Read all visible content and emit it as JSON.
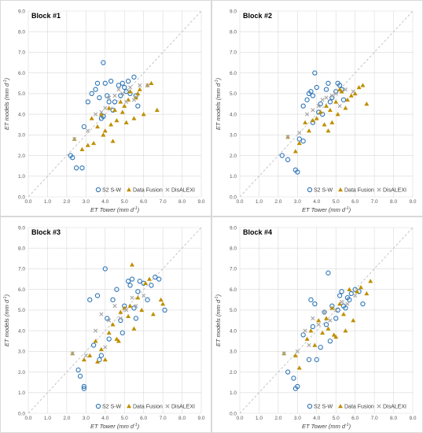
{
  "colors": {
    "s2": "#2E75B6",
    "fusion": "#BF8F00",
    "disalexi": "#A5A5A5",
    "grid": "#D9D9D9",
    "oneToOne": "#BFBFBF",
    "frame": "#D0D0D0"
  },
  "legend": {
    "s2_label": "S2 S-W",
    "fusion_label": "Data Fusion",
    "disalexi_label": "DisALEXI"
  },
  "axes": {
    "xlabel_main": "ET Tower",
    "ylabel_main": "ET models",
    "unit_main": "(mm d",
    "unit_exp": "-1",
    "unit_close": ")",
    "ticks": [
      "0.0",
      "1.0",
      "2.0",
      "3.0",
      "4.0",
      "5.0",
      "6.0",
      "7.0",
      "8.0",
      "9.0"
    ],
    "xlim": [
      0,
      9
    ],
    "ylim": [
      0,
      9
    ]
  },
  "chart_data": [
    {
      "type": "scatter",
      "title": "Block #1",
      "xlabel": "ET Tower (mm d-1)",
      "ylabel": "ET models (mm d-1)",
      "xlim": [
        0,
        9
      ],
      "ylim": [
        0,
        9
      ],
      "grid": true,
      "legend_position": "bottom-right",
      "one_to_one_line": true,
      "series": [
        {
          "name": "S2 S-W",
          "marker": "circle",
          "x": [
            2.2,
            2.3,
            2.5,
            2.8,
            2.9,
            3.1,
            3.3,
            3.5,
            3.6,
            3.7,
            3.8,
            3.9,
            3.9,
            4.0,
            4.1,
            4.2,
            4.3,
            4.4,
            4.5,
            4.7,
            4.8,
            4.9,
            5.0,
            5.1,
            5.2,
            5.3,
            5.5,
            5.6,
            5.7,
            3.9
          ],
          "y": [
            2.0,
            1.9,
            1.4,
            1.4,
            3.4,
            4.6,
            5.0,
            5.2,
            5.5,
            4.8,
            3.8,
            3.9,
            6.5,
            5.5,
            4.9,
            4.6,
            5.6,
            4.2,
            4.6,
            5.4,
            4.9,
            5.5,
            5.3,
            5.1,
            5.6,
            5.0,
            5.8,
            4.9,
            4.4,
            3.9
          ]
        },
        {
          "name": "Data Fusion",
          "marker": "triangle",
          "x": [
            2.4,
            2.8,
            3.1,
            3.3,
            3.4,
            3.6,
            3.8,
            3.9,
            4.0,
            4.2,
            4.3,
            4.5,
            4.6,
            4.8,
            4.9,
            5.0,
            5.1,
            5.2,
            5.3,
            5.5,
            5.6,
            5.8,
            6.0,
            6.2,
            6.4,
            6.7,
            4.4,
            5.7
          ],
          "y": [
            2.8,
            2.3,
            2.5,
            3.8,
            2.6,
            3.4,
            4.0,
            3.0,
            3.2,
            4.3,
            3.5,
            4.2,
            3.7,
            4.6,
            4.1,
            4.4,
            3.6,
            4.7,
            5.1,
            3.8,
            4.8,
            5.2,
            4.0,
            5.4,
            5.5,
            4.2,
            2.7,
            5.0
          ]
        },
        {
          "name": "DisALEXI",
          "marker": "x",
          "x": [
            2.4,
            3.1,
            3.5,
            3.8,
            4.0,
            4.2,
            4.5,
            4.7,
            4.9,
            5.1,
            5.3,
            5.5,
            5.8,
            6.2
          ],
          "y": [
            2.8,
            3.2,
            4.0,
            4.1,
            4.3,
            4.8,
            4.9,
            5.2,
            5.0,
            4.6,
            5.3,
            4.7,
            5.4,
            5.4
          ]
        }
      ]
    },
    {
      "type": "scatter",
      "title": "Block #2",
      "xlabel": "ET Tower (mm d-1)",
      "ylabel": "ET models (mm d-1)",
      "xlim": [
        0,
        9
      ],
      "ylim": [
        0,
        9
      ],
      "grid": true,
      "legend_position": "bottom-right",
      "one_to_one_line": true,
      "series": [
        {
          "name": "S2 S-W",
          "marker": "circle",
          "x": [
            2.2,
            2.5,
            2.9,
            3.0,
            3.1,
            3.3,
            3.5,
            3.6,
            3.7,
            3.8,
            3.9,
            4.0,
            4.1,
            4.2,
            4.3,
            4.5,
            4.6,
            4.7,
            4.8,
            5.0,
            5.1,
            5.2,
            5.3,
            5.4,
            3.3,
            3.8
          ],
          "y": [
            2.0,
            1.8,
            1.3,
            1.2,
            2.8,
            2.7,
            4.7,
            5.0,
            5.1,
            4.9,
            6.0,
            5.3,
            4.1,
            4.5,
            4.0,
            5.2,
            5.5,
            4.6,
            4.8,
            5.1,
            5.5,
            5.4,
            5.2,
            4.7,
            4.4,
            3.6
          ]
        },
        {
          "name": "Data Fusion",
          "marker": "triangle",
          "x": [
            2.5,
            2.9,
            3.1,
            3.4,
            3.6,
            3.8,
            4.0,
            4.2,
            4.4,
            4.5,
            4.7,
            4.8,
            5.0,
            5.1,
            5.3,
            5.5,
            5.6,
            5.8,
            6.0,
            6.2,
            6.4,
            6.6,
            4.6,
            5.2
          ],
          "y": [
            2.9,
            2.2,
            2.6,
            3.6,
            3.2,
            3.7,
            3.8,
            4.1,
            3.5,
            4.4,
            4.2,
            3.6,
            4.6,
            4.0,
            5.1,
            4.3,
            4.7,
            4.9,
            5.0,
            5.3,
            5.4,
            4.5,
            3.2,
            5.2
          ]
        },
        {
          "name": "DisALEXI",
          "marker": "x",
          "x": [
            2.5,
            3.1,
            3.5,
            3.8,
            4.1,
            4.3,
            4.5,
            4.8,
            5.0,
            5.2,
            5.5,
            5.9
          ],
          "y": [
            2.9,
            3.1,
            4.0,
            4.2,
            4.4,
            4.7,
            4.8,
            4.9,
            5.0,
            4.4,
            5.2,
            5.1
          ]
        }
      ]
    },
    {
      "type": "scatter",
      "title": "Block #3",
      "xlabel": "ET Tower (mm d-1)",
      "ylabel": "ET models (mm d-1)",
      "xlim": [
        0,
        9
      ],
      "ylim": [
        0,
        9
      ],
      "grid": true,
      "legend_position": "bottom-right",
      "one_to_one_line": true,
      "series": [
        {
          "name": "S2 S-W",
          "marker": "circle",
          "x": [
            2.6,
            2.7,
            2.9,
            2.9,
            3.2,
            3.4,
            3.6,
            3.7,
            3.8,
            4.0,
            4.1,
            4.2,
            4.4,
            4.6,
            4.8,
            5.0,
            5.2,
            5.3,
            5.4,
            5.5,
            5.7,
            5.8,
            6.0,
            6.2,
            6.4,
            6.6,
            6.8,
            7.1,
            4.9,
            5.6
          ],
          "y": [
            2.1,
            1.8,
            1.3,
            1.2,
            5.5,
            3.3,
            5.7,
            2.6,
            2.8,
            7.0,
            4.6,
            3.6,
            5.5,
            6.0,
            4.5,
            5.2,
            6.4,
            6.2,
            6.5,
            5.1,
            5.9,
            6.4,
            6.3,
            5.5,
            6.2,
            6.6,
            6.5,
            5.0,
            3.9,
            4.6
          ]
        },
        {
          "name": "Data Fusion",
          "marker": "triangle",
          "x": [
            2.3,
            2.9,
            3.2,
            3.5,
            3.8,
            4.0,
            4.2,
            4.4,
            4.6,
            4.8,
            5.0,
            5.2,
            5.4,
            5.5,
            5.7,
            5.9,
            6.1,
            6.3,
            6.5,
            6.9,
            7.0,
            4.7,
            5.3,
            3.6
          ],
          "y": [
            2.9,
            2.6,
            2.8,
            3.5,
            3.1,
            2.6,
            3.9,
            4.3,
            3.6,
            4.9,
            5.1,
            4.7,
            7.2,
            4.1,
            5.6,
            5.0,
            6.3,
            6.5,
            4.8,
            5.5,
            5.3,
            3.5,
            5.2,
            2.5
          ]
        },
        {
          "name": "DisALEXI",
          "marker": "x",
          "x": [
            2.3,
            3.0,
            3.5,
            3.8,
            4.2,
            4.5,
            4.8,
            5.1,
            5.4,
            5.6,
            6.0,
            4.0
          ],
          "y": [
            2.9,
            2.8,
            4.0,
            4.8,
            4.5,
            5.2,
            4.6,
            5.0,
            5.6,
            5.2,
            5.7,
            3.2
          ]
        }
      ]
    },
    {
      "type": "scatter",
      "title": "Block #4",
      "xlabel": "ET Tower (mm d-1)",
      "ylabel": "ET models (mm d-1)",
      "xlim": [
        0,
        9
      ],
      "ylim": [
        0,
        9
      ],
      "grid": true,
      "legend_position": "bottom-right",
      "one_to_one_line": true,
      "series": [
        {
          "name": "S2 S-W",
          "marker": "circle",
          "x": [
            2.5,
            2.8,
            2.9,
            3.0,
            3.3,
            3.6,
            3.7,
            3.8,
            3.9,
            4.0,
            4.2,
            4.4,
            4.5,
            4.6,
            4.8,
            5.0,
            5.1,
            5.2,
            5.3,
            5.4,
            5.5,
            5.6,
            5.8,
            6.0,
            6.2,
            6.4,
            4.7,
            5.7
          ],
          "y": [
            2.0,
            1.7,
            1.2,
            1.3,
            3.8,
            2.6,
            5.5,
            4.2,
            5.3,
            2.6,
            3.2,
            4.9,
            4.3,
            6.8,
            5.2,
            4.6,
            5.0,
            5.7,
            5.9,
            5.2,
            5.1,
            5.6,
            5.8,
            6.0,
            5.9,
            5.3,
            3.5,
            5.5
          ]
        },
        {
          "name": "Data Fusion",
          "marker": "triangle",
          "x": [
            2.3,
            2.9,
            3.1,
            3.5,
            3.7,
            3.9,
            4.1,
            4.3,
            4.5,
            4.6,
            4.8,
            5.0,
            5.2,
            5.4,
            5.5,
            5.7,
            5.9,
            6.1,
            6.3,
            6.6,
            6.8,
            4.9
          ],
          "y": [
            2.9,
            2.8,
            2.2,
            3.6,
            4.0,
            3.3,
            4.5,
            3.9,
            4.6,
            4.1,
            5.1,
            3.7,
            5.3,
            4.8,
            4.0,
            6.0,
            4.5,
            5.9,
            6.1,
            5.8,
            6.4,
            3.8
          ]
        },
        {
          "name": "DisALEXI",
          "marker": "x",
          "x": [
            2.3,
            3.0,
            3.4,
            3.8,
            4.1,
            4.4,
            4.7,
            5.0,
            5.3,
            5.6,
            6.0,
            3.6
          ],
          "y": [
            2.9,
            3.0,
            4.0,
            4.6,
            4.3,
            4.9,
            4.5,
            5.0,
            5.4,
            5.3,
            5.7,
            3.3
          ]
        }
      ]
    }
  ]
}
